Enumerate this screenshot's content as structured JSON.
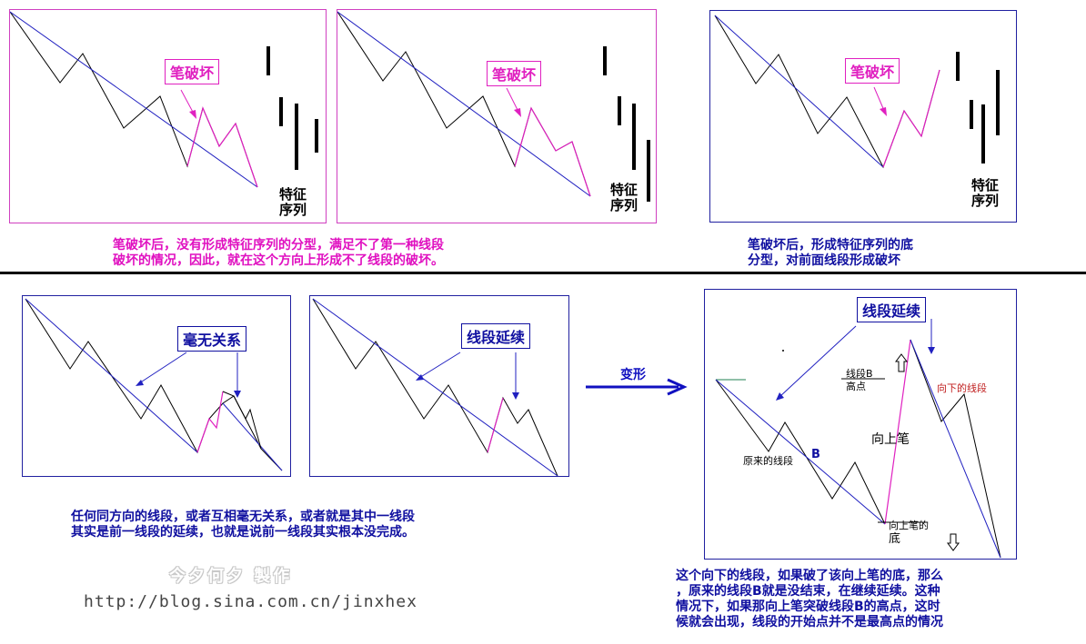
{
  "tags": {
    "bi_po_huai": "笔破坏",
    "hao_wu_guan_xi": "毫无关系",
    "xian_duan_yan_xu": "线段延续"
  },
  "feature_sequence": {
    "line1": "特征",
    "line2": "序列"
  },
  "captions": {
    "top_left_1": "笔破坏后，没有形成特征序列的分型，满足不了第一种线段",
    "top_left_2": "破坏的情况，因此，就在这个方向上形成不了线段的破坏。",
    "top_right_1": "笔破坏后，形成特征序列的底",
    "top_right_2": "分型，对前面线段形成破坏",
    "bottom_left_1": "任何同方向的线段，或者互相毫无关系，或者就是其中一线段",
    "bottom_left_2": "其实是前一线段的延续，也就是说前一线段其实根本没完成。",
    "bottom_right_1": "这个向下的线段，如果破了该向上笔的底，那么",
    "bottom_right_2": "，原来的线段B就是没结束，在继续延续。这种",
    "bottom_right_3": "情况下，如果那向上笔突破线段B的高点，这时",
    "bottom_right_4": "候就会出现，线段的开始点并不是最高点的情况"
  },
  "transform": {
    "label": "变形"
  },
  "diagram_labels": {
    "segment_b_high_1": "线段B",
    "segment_b_high_2": "高点",
    "downward_segment": "向下的线段",
    "original_segment": "原来的线段",
    "b": "B",
    "upward_stroke": "向上笔",
    "upward_bottom_1": "向上笔的",
    "upward_bottom_2": "底"
  },
  "watermark": "今夕何夕  製作",
  "url": "http://blog.sina.com.cn/jinxhex",
  "colors": {
    "pink": "#e020c0",
    "blue": "#1010a0",
    "black": "#000000"
  },
  "icons": [
    "arrow-right-icon",
    "hollow-up-arrow-icon",
    "hollow-down-arrow-icon",
    "down-arrow-icon"
  ]
}
